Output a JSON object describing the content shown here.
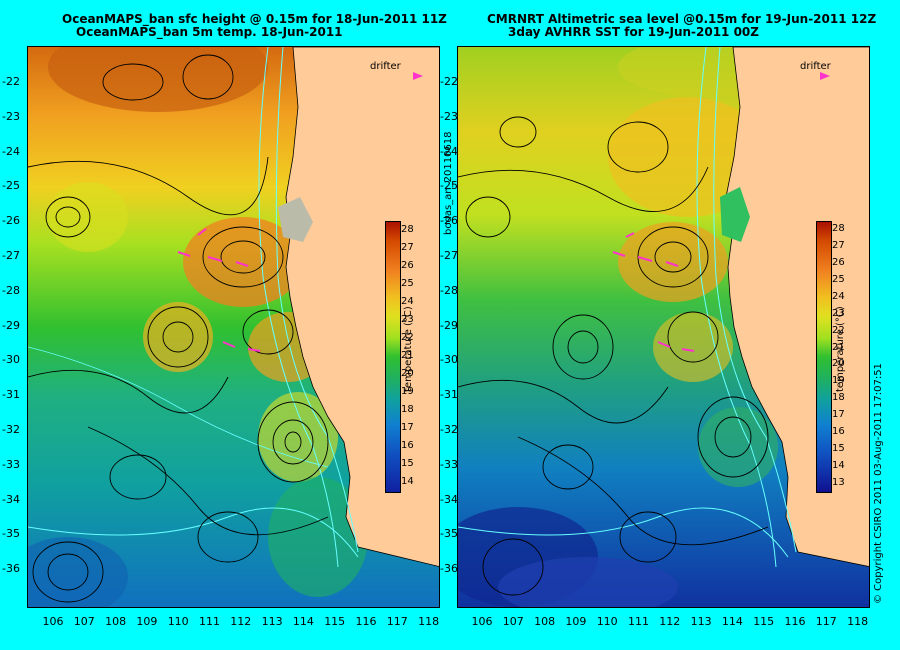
{
  "left_panel": {
    "title_line1": "OceanMAPS_ban sfc height @ 0.15m for 18-Jun-2011 11Z",
    "title_line2": "OceanMAPS_ban 5m temp. 18-Jun-2011",
    "colorbar_ticks": [
      "28",
      "27",
      "26",
      "25",
      "24",
      "23",
      "22",
      "21",
      "20",
      "19",
      "18",
      "17",
      "16",
      "15",
      "14"
    ],
    "colorbar_label": "temperature (°C)",
    "legend": "drifter"
  },
  "right_panel": {
    "title_line1": "CMRNRT Altimetric sea level  @0.15m  for 19-Jun-2011 12Z",
    "title_line2": "3day AVHRR SST for 19-Jun-2011 00Z",
    "colorbar_ticks": [
      "28",
      "27",
      "26",
      "25",
      "24",
      "23",
      "22",
      "21",
      "20",
      "19",
      "18",
      "17",
      "16",
      "15",
      "14",
      "13"
    ],
    "colorbar_label": "temperature (°C)",
    "legend": "drifter"
  },
  "lat_labels": [
    "-22",
    "-23",
    "-24",
    "-25",
    "-26",
    "-27",
    "-28",
    "-29",
    "-30",
    "-31",
    "-32",
    "-33",
    "-34",
    "-35",
    "-36"
  ],
  "lon_labels": [
    "106",
    "107",
    "108",
    "109",
    "110",
    "111",
    "112",
    "113",
    "114",
    "115",
    "116",
    "117",
    "118"
  ],
  "side_text_middle": "bodas_an_20110618",
  "side_text_right": "© Copyright CSIRO 2011   03-Aug-2011 17:07:51",
  "colors": {
    "background": "#00ffff",
    "land": "#ffcc99",
    "drifter": "#ff33cc"
  }
}
